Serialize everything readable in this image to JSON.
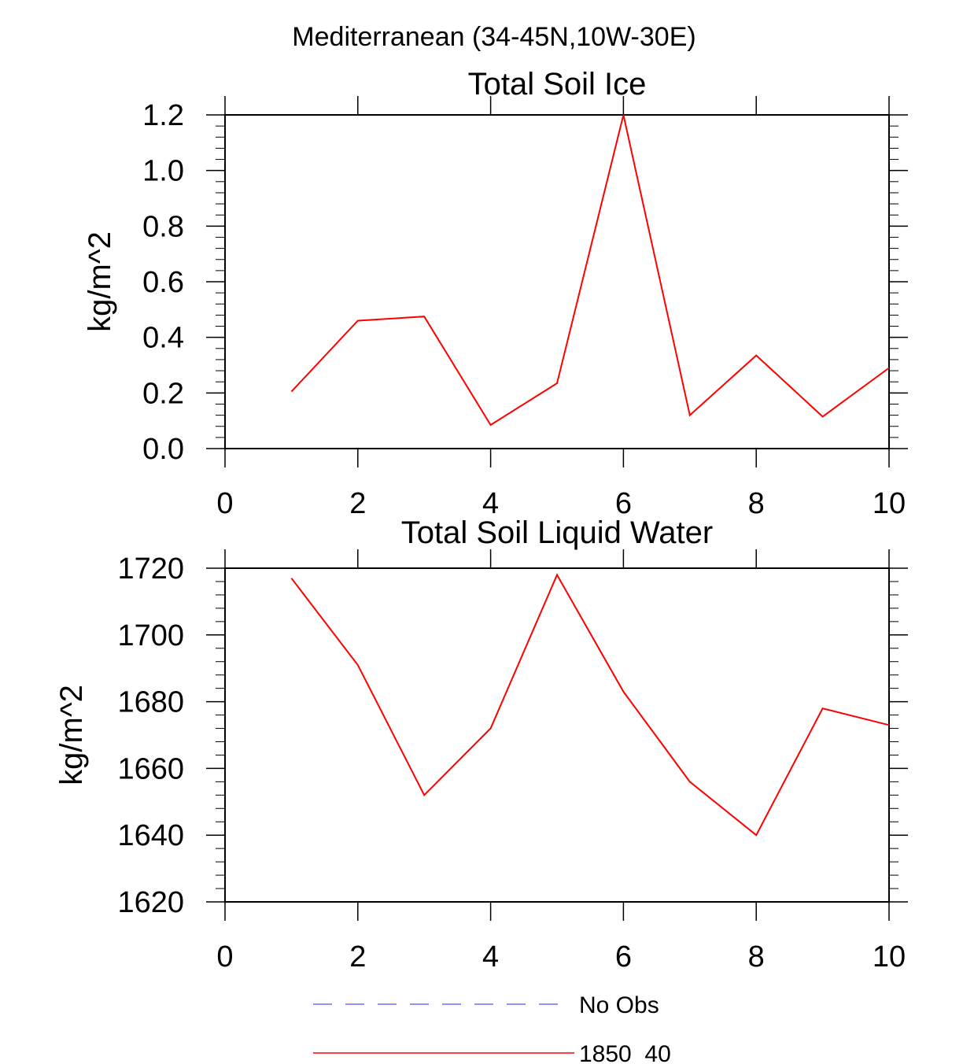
{
  "suptitle": "Mediterranean (34-45N,10W-30E)",
  "chart_data": [
    {
      "type": "line",
      "title": "Total Soil Ice",
      "xlabel": "",
      "ylabel": "kg/m^2",
      "xlim": [
        0,
        10
      ],
      "ylim": [
        0.0,
        1.2
      ],
      "xticks": [
        0,
        2,
        4,
        6,
        8,
        10
      ],
      "xtick_labels": [
        "0",
        "2",
        "4",
        "6",
        "8",
        "10"
      ],
      "yticks": [
        0.0,
        0.2,
        0.4,
        0.6,
        0.8,
        1.0,
        1.2
      ],
      "ytick_labels": [
        "0.0",
        "0.2",
        "0.4",
        "0.6",
        "0.8",
        "1.0",
        "1.2"
      ],
      "y_minor_step": 0.04,
      "grid": false,
      "series": [
        {
          "name": "1850_40",
          "color": "#ff0000",
          "x": [
            1,
            2,
            3,
            4,
            5,
            6,
            7,
            8,
            9,
            10
          ],
          "y": [
            0.205,
            0.46,
            0.475,
            0.085,
            0.235,
            1.2,
            0.12,
            0.335,
            0.115,
            0.29
          ]
        }
      ]
    },
    {
      "type": "line",
      "title": "Total Soil Liquid Water",
      "xlabel": "",
      "ylabel": "kg/m^2",
      "xlim": [
        0,
        10
      ],
      "ylim": [
        1620,
        1720
      ],
      "xticks": [
        0,
        2,
        4,
        6,
        8,
        10
      ],
      "xtick_labels": [
        "0",
        "2",
        "4",
        "6",
        "8",
        "10"
      ],
      "yticks": [
        1620,
        1640,
        1660,
        1680,
        1700,
        1720
      ],
      "ytick_labels": [
        "1620",
        "1640",
        "1660",
        "1680",
        "1700",
        "1720"
      ],
      "y_minor_step": 4,
      "grid": false,
      "series": [
        {
          "name": "1850_40",
          "color": "#ff0000",
          "x": [
            1,
            2,
            3,
            4,
            5,
            6,
            7,
            8,
            9,
            10
          ],
          "y": [
            1717,
            1691,
            1652,
            1672,
            1718,
            1683,
            1656,
            1640,
            1678,
            1673
          ]
        }
      ]
    }
  ],
  "legend": {
    "placement": "bottom-center",
    "entries": [
      {
        "label": "No Obs",
        "color": "#6b6bff",
        "dash": "dashed"
      },
      {
        "label": "1850_40",
        "color": "#ff0000",
        "dash": "solid"
      }
    ]
  }
}
